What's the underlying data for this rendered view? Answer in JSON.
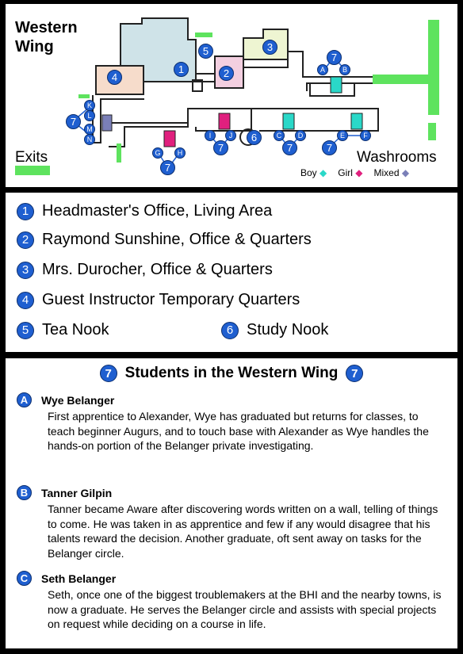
{
  "map": {
    "title_line1": "Western",
    "title_line2": "Wing",
    "exits_label": "Exits",
    "washrooms_label": "Washrooms",
    "washroom_types": [
      {
        "label": "Boy",
        "color": "#2ad8c8"
      },
      {
        "label": "Girl",
        "color": "#e0207e"
      },
      {
        "label": "Mixed",
        "color": "#7a7fb8"
      }
    ],
    "room_markers": [
      "1",
      "2",
      "3",
      "4",
      "5",
      "6"
    ],
    "student_markers": [
      "7",
      "7",
      "7",
      "7",
      "7",
      "7"
    ],
    "letter_markers": [
      "A",
      "B",
      "C",
      "D",
      "E",
      "F",
      "G",
      "H",
      "I",
      "J",
      "K",
      "L",
      "M",
      "N"
    ],
    "colors": {
      "exit": "#5ee35e",
      "marker": "#1f5fd0",
      "room1": "#cfe3e8",
      "room2": "#f3cfe0",
      "room3": "#eef5d2",
      "room4": "#f6dccb"
    }
  },
  "legend": {
    "items": [
      {
        "num": "1",
        "label": "Headmaster's Office, Living Area"
      },
      {
        "num": "2",
        "label": "Raymond Sunshine, Office & Quarters"
      },
      {
        "num": "3",
        "label": "Mrs. Durocher, Office & Quarters"
      },
      {
        "num": "4",
        "label": "Guest Instructor Temporary Quarters"
      },
      {
        "num": "5",
        "label": "Tea Nook"
      },
      {
        "num": "6",
        "label": "Study Nook"
      }
    ]
  },
  "students": {
    "title_num": "7",
    "title": "Students in the Western Wing",
    "entries": [
      {
        "letter": "A",
        "name": "Wye Belanger",
        "text": "First apprentice to Alexander, Wye has graduated but returns for classes, to teach beginner Augurs, and to touch base with Alexander as Wye handles the hands-on portion of the Belanger private investigating."
      },
      {
        "letter": "B",
        "name": "Tanner Gilpin",
        "text": "Tanner became Aware after discovering words written on a wall, telling of things to come.  He was taken in as apprentice and few if any would disagree that his talents reward the decision.  Another graduate, oft sent away on tasks for the Belanger circle."
      },
      {
        "letter": "C",
        "name": "Seth Belanger",
        "text": "Seth, once one of the biggest troublemakers at the BHI and the nearby towns, is now a graduate.  He serves the Belanger circle and assists with special projects on request while deciding on a course in life."
      }
    ]
  }
}
